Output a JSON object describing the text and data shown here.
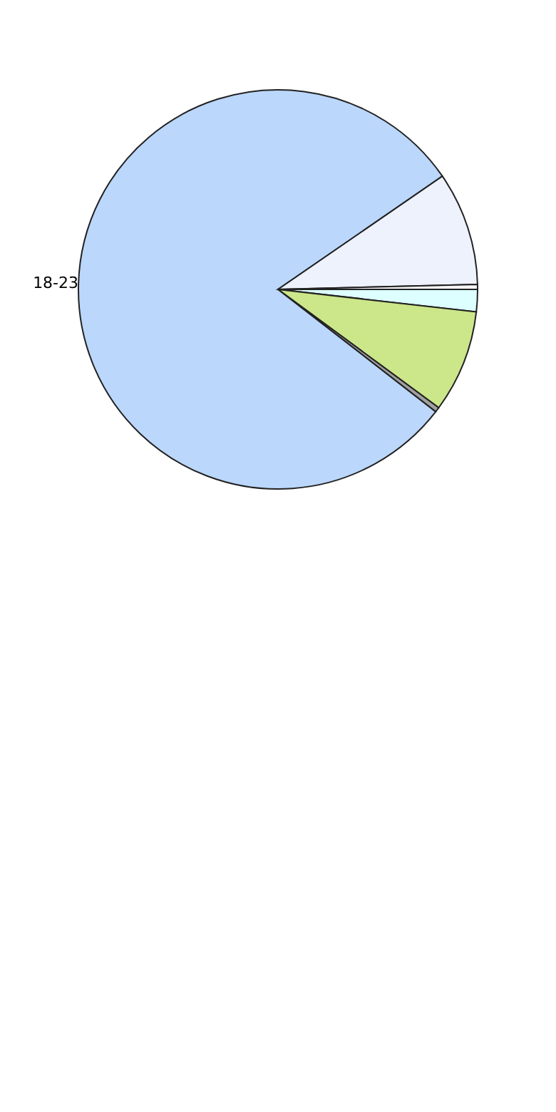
{
  "chart_data": {
    "type": "pie",
    "categories": [
      null,
      null,
      null,
      "18-23",
      null,
      null
    ],
    "values": [
      1.8,
      8.3,
      0.4,
      79.9,
      9.2,
      0.4
    ],
    "colors": [
      "#ddffff",
      "#cce68a",
      "#a0a0a0",
      "#bbd7fb",
      "#eef2fc",
      "#f4f4f4"
    ],
    "legend": false
  }
}
